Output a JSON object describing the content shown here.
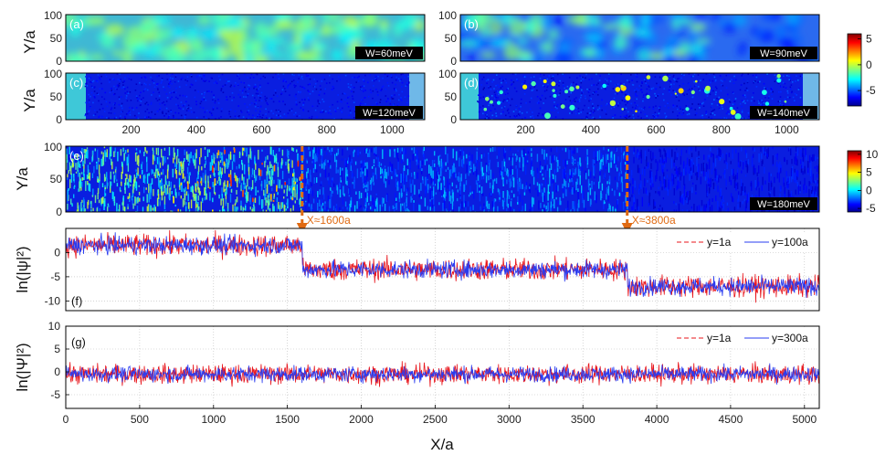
{
  "chart_data": [
    {
      "type": "heatmap",
      "id": "a",
      "label": "(a)",
      "ylabel": "Y/a",
      "yticks": [
        0,
        50,
        100
      ],
      "xlim": [
        0,
        1100
      ],
      "ylim": [
        0,
        100
      ],
      "annotation": "W=60meV",
      "colorbar_ticks": [
        5,
        0,
        -5
      ],
      "colorbar_range": [
        -8,
        6
      ]
    },
    {
      "type": "heatmap",
      "id": "b",
      "label": "(b)",
      "yticks": [
        0,
        50,
        100
      ],
      "xlim": [
        0,
        1100
      ],
      "ylim": [
        0,
        100
      ],
      "annotation": "W=90meV"
    },
    {
      "type": "heatmap",
      "id": "c",
      "label": "(c)",
      "ylabel": "Y/a",
      "yticks": [
        0,
        50,
        100
      ],
      "xticks": [
        200,
        400,
        600,
        800,
        1000
      ],
      "xlim": [
        0,
        1100
      ],
      "ylim": [
        0,
        100
      ],
      "annotation": "W=120meV"
    },
    {
      "type": "heatmap",
      "id": "d",
      "label": "(d)",
      "yticks": [
        0,
        50,
        100
      ],
      "xticks": [
        200,
        400,
        600,
        800,
        1000
      ],
      "xlim": [
        0,
        1100
      ],
      "ylim": [
        0,
        100
      ],
      "annotation": "W=140meV"
    },
    {
      "type": "heatmap",
      "id": "e",
      "label": "(e)",
      "ylabel": "Y/a",
      "yticks": [
        0,
        50,
        100
      ],
      "xlim": [
        0,
        5100
      ],
      "ylim": [
        0,
        100
      ],
      "annotation": "W=180meV",
      "colorbar_ticks": [
        10,
        5,
        0,
        -5
      ],
      "colorbar_range": [
        -6,
        11
      ],
      "markers": [
        {
          "x": 1600,
          "label": "X≈1600a"
        },
        {
          "x": 3800,
          "label": "X≈3800a"
        }
      ]
    },
    {
      "type": "line",
      "id": "f",
      "label": "(f)",
      "ylabel": "ln(|ψ|²)",
      "yticks": [
        0,
        -5,
        -10
      ],
      "ylim": [
        -12,
        5
      ],
      "xlim": [
        0,
        5100
      ],
      "series": [
        {
          "name": "y=1a",
          "color": "#e8141b",
          "style": "dashed"
        },
        {
          "name": "y=100a",
          "color": "#2a3cf0",
          "style": "solid"
        }
      ],
      "segments": [
        {
          "x": [
            0,
            1600
          ],
          "mean": 1.5
        },
        {
          "x": [
            1600,
            3800
          ],
          "mean": -3.5
        },
        {
          "x": [
            3800,
            5100
          ],
          "mean": -7.0
        }
      ]
    },
    {
      "type": "line",
      "id": "g",
      "label": "(g)",
      "ylabel": "ln(|Ψ|²)",
      "yticks": [
        10,
        5,
        0,
        -5
      ],
      "ylim": [
        -8,
        10
      ],
      "xlim": [
        0,
        5100
      ],
      "xlabel": "X/a",
      "xticks": [
        0,
        500,
        1000,
        1500,
        2000,
        2500,
        3000,
        3500,
        4000,
        4500,
        5000
      ],
      "series": [
        {
          "name": "y=1a",
          "color": "#e8141b",
          "style": "dashed"
        },
        {
          "name": "y=300a",
          "color": "#2a3cf0",
          "style": "solid"
        }
      ],
      "mean": -0.5
    }
  ]
}
